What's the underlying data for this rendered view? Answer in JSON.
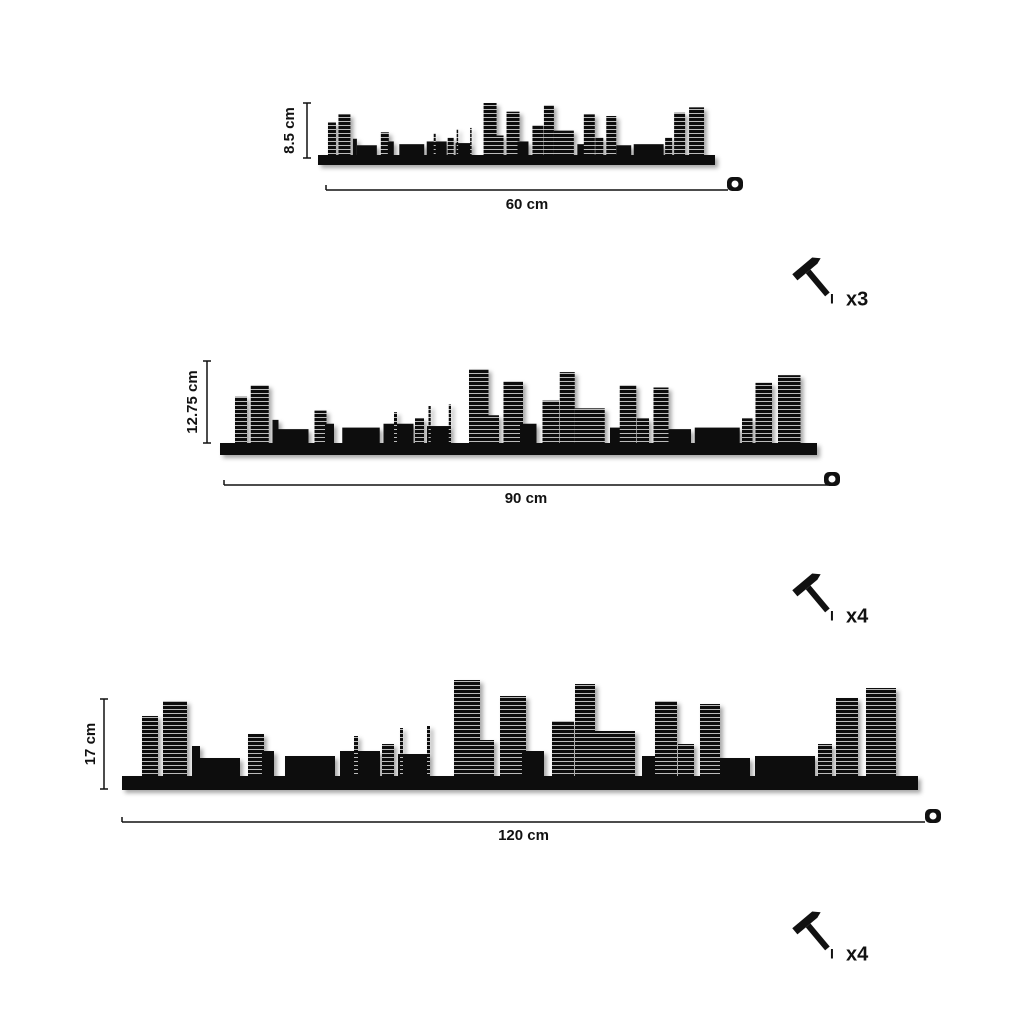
{
  "products": [
    {
      "height": "8.5 cm",
      "width": "60 cm",
      "nails": "x3"
    },
    {
      "height": "12.75 cm",
      "width": "90 cm",
      "nails": "x4"
    },
    {
      "height": "17 cm",
      "width": "120 cm",
      "nails": "x4"
    }
  ]
}
